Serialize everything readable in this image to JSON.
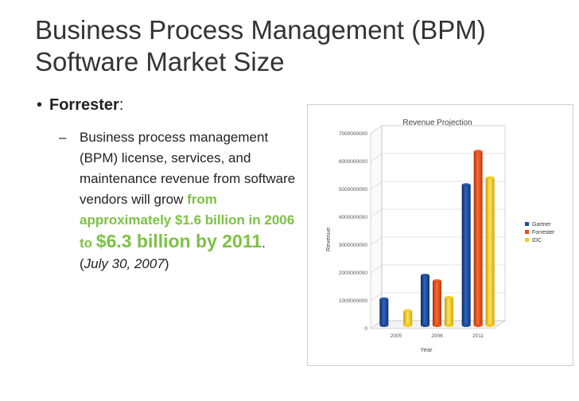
{
  "slide": {
    "title_line1": "Business Process Management (BPM)",
    "title_line2": "Software Market Size",
    "bullet_label": "Forrester",
    "bullet_colon": ":",
    "sub_dash": "–",
    "sub_text": "Business process management (BPM) license, services, and maintenance revenue from software vendors will grow ",
    "highlight_small": "from approximately $1.6 billion in 2006 to",
    "highlight_big": "$6.3 billion by 2011",
    "date_prefix": ". (",
    "date": "July 30, 2007",
    "date_suffix": ")"
  },
  "colors": {
    "accent_green": "#7cc243",
    "gartner": "#1f4e9a",
    "forrester": "#e8501e",
    "idc": "#f3cb1c"
  },
  "chart_data": {
    "type": "bar",
    "title": "Revenue Projection",
    "xlabel": "Year",
    "ylabel": "Revenue",
    "categories": [
      "2005",
      "2006",
      "2011"
    ],
    "ylim": [
      0,
      7000000000
    ],
    "yticks": [
      "0",
      "1000000000",
      "2000000000",
      "3000000000",
      "4000000000",
      "5000000000",
      "6000000000",
      "7000000000"
    ],
    "grid": true,
    "legend_position": "right",
    "series": [
      {
        "name": "Gartner",
        "values": [
          950000000,
          1800000000,
          5050000000
        ]
      },
      {
        "name": "Forrester",
        "values": [
          null,
          1600000000,
          6250000000
        ]
      },
      {
        "name": "IDC",
        "values": [
          520000000,
          1000000000,
          5300000000
        ]
      }
    ]
  }
}
